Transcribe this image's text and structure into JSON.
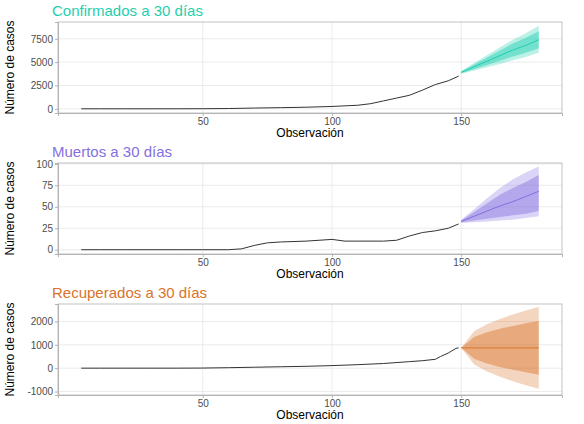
{
  "chart_data": [
    {
      "type": "line",
      "title": "Confirmados a 30 días",
      "xlabel": "Observación",
      "ylabel": "Número de casos",
      "xlim": [
        -6,
        189
      ],
      "xticks": [
        50,
        100,
        150
      ],
      "ylim": [
        -450,
        9300
      ],
      "yticks": [
        0,
        2500,
        5000,
        7500
      ],
      "grid": true,
      "series": [
        {
          "color": "#333333",
          "x": [
            3,
            10,
            20,
            30,
            40,
            50,
            60,
            70,
            80,
            90,
            100,
            110,
            115,
            120,
            125,
            130,
            135,
            140,
            145,
            149
          ],
          "values": [
            0,
            0,
            0,
            0,
            2,
            8,
            30,
            80,
            120,
            170,
            250,
            380,
            550,
            850,
            1150,
            1450,
            2000,
            2600,
            3000,
            3500
          ]
        },
        {
          "color": "#1fcfb0",
          "x": [
            150,
            155,
            160,
            165,
            170,
            175,
            180
          ],
          "values": [
            3900,
            4500,
            5100,
            5700,
            6300,
            6800,
            7400
          ],
          "lower_80": [
            3800,
            4250,
            4700,
            5150,
            5600,
            6000,
            6500
          ],
          "upper_80": [
            4000,
            4750,
            5500,
            6250,
            7000,
            7600,
            8300
          ],
          "lower_95": [
            3750,
            4100,
            4450,
            4800,
            5200,
            5550,
            6000
          ],
          "upper_95": [
            4050,
            4900,
            5750,
            6600,
            7400,
            8100,
            8900
          ]
        }
      ]
    },
    {
      "type": "line",
      "title": "Muertos a 30 días",
      "xlabel": "Observación",
      "ylabel": "Número de casos",
      "xlim": [
        -6,
        189
      ],
      "xticks": [
        50,
        100,
        150
      ],
      "ylim": [
        -5,
        101
      ],
      "yticks": [
        0,
        25,
        50,
        75,
        100
      ],
      "grid": true,
      "series": [
        {
          "color": "#333333",
          "x": [
            3,
            10,
            20,
            30,
            40,
            50,
            60,
            65,
            70,
            75,
            80,
            90,
            100,
            105,
            110,
            120,
            125,
            130,
            135,
            140,
            145,
            149
          ],
          "values": [
            0,
            0,
            0,
            0,
            0,
            0,
            0,
            1,
            5,
            8,
            9,
            10,
            12,
            10,
            10,
            10,
            11,
            16,
            20,
            22,
            25,
            30
          ]
        },
        {
          "color": "#8470e0",
          "x": [
            150,
            155,
            160,
            165,
            170,
            175,
            180
          ],
          "values": [
            33,
            39,
            45,
            51,
            56,
            62,
            68
          ],
          "lower_80": [
            32,
            34,
            36,
            38,
            40,
            42,
            45
          ],
          "upper_80": [
            34,
            44,
            54,
            64,
            72,
            79,
            87
          ],
          "lower_95": [
            31,
            32,
            33,
            34,
            35,
            37,
            39
          ],
          "upper_95": [
            35,
            47,
            60,
            72,
            82,
            90,
            97
          ]
        }
      ]
    },
    {
      "type": "line",
      "title": "Recuperados a 30 días",
      "xlabel": "Observación",
      "ylabel": "Número de casos",
      "xlim": [
        -6,
        189
      ],
      "xticks": [
        50,
        100,
        150
      ],
      "ylim": [
        -1150,
        2750
      ],
      "yticks": [
        -1000,
        0,
        1000,
        2000
      ],
      "grid": true,
      "series": [
        {
          "color": "#333333",
          "x": [
            3,
            10,
            20,
            30,
            40,
            50,
            60,
            70,
            80,
            90,
            100,
            110,
            120,
            130,
            135,
            140,
            142,
            145,
            148,
            149
          ],
          "values": [
            0,
            0,
            0,
            0,
            0,
            5,
            20,
            40,
            60,
            80,
            110,
            150,
            200,
            280,
            320,
            380,
            500,
            650,
            850,
            870
          ]
        },
        {
          "color": "#d9742a",
          "x": [
            150,
            155,
            160,
            165,
            170,
            175,
            180
          ],
          "values": [
            870,
            870,
            870,
            870,
            870,
            870,
            870
          ],
          "lower_80": [
            870,
            400,
            205,
            55,
            -70,
            -180,
            -280
          ],
          "upper_80": [
            870,
            1340,
            1535,
            1685,
            1810,
            1920,
            2020
          ],
          "lower_95": [
            870,
            155,
            -140,
            -365,
            -560,
            -730,
            -880
          ],
          "upper_95": [
            870,
            1585,
            1880,
            2105,
            2300,
            2470,
            2620
          ]
        }
      ]
    }
  ]
}
